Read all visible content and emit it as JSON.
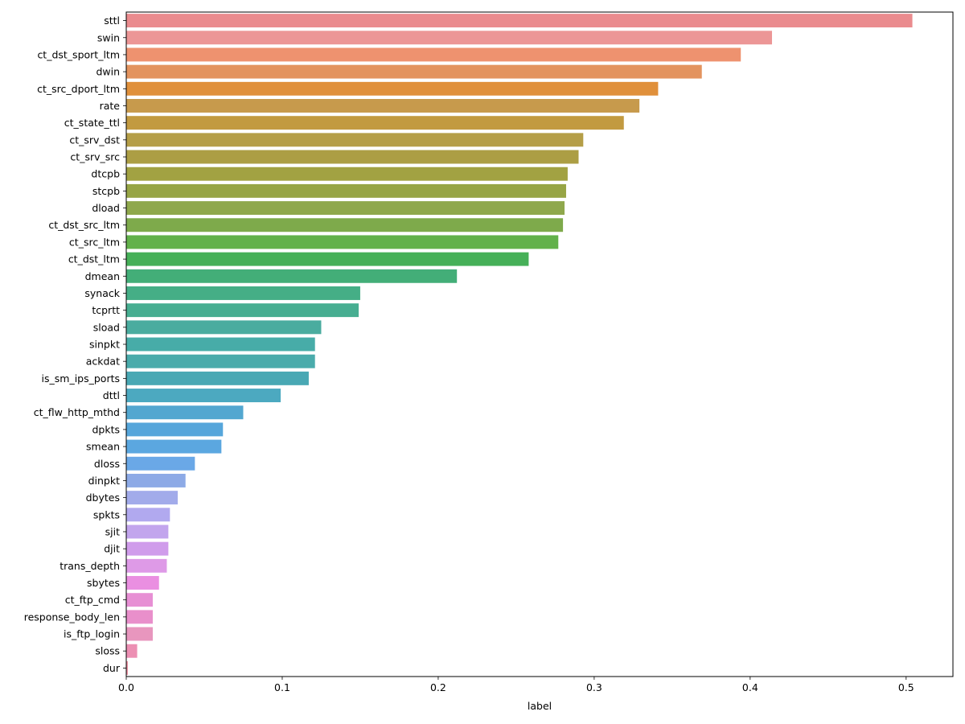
{
  "chart_data": {
    "type": "bar",
    "orientation": "horizontal",
    "title": "",
    "xlabel": "label",
    "ylabel": "",
    "xlim": [
      0,
      0.53
    ],
    "xticks": [
      0.0,
      0.1,
      0.2,
      0.3,
      0.4,
      0.5
    ],
    "xtick_labels": [
      "0.0",
      "0.1",
      "0.2",
      "0.3",
      "0.4",
      "0.5"
    ],
    "grid": false,
    "legend": "none",
    "categories": [
      "sttl",
      "swin",
      "ct_dst_sport_ltm",
      "dwin",
      "ct_src_dport_ltm",
      "rate",
      "ct_state_ttl",
      "ct_srv_dst",
      "ct_srv_src",
      "dtcpb",
      "stcpb",
      "dload",
      "ct_dst_src_ltm",
      "ct_src_ltm",
      "ct_dst_ltm",
      "dmean",
      "synack",
      "tcprtt",
      "sload",
      "sinpkt",
      "ackdat",
      "is_sm_ips_ports",
      "dttl",
      "ct_flw_http_mthd",
      "dpkts",
      "smean",
      "dloss",
      "dinpkt",
      "dbytes",
      "spkts",
      "sjit",
      "djit",
      "trans_depth",
      "sbytes",
      "ct_ftp_cmd",
      "response_body_len",
      "is_ftp_login",
      "sloss",
      "dur"
    ],
    "values": [
      0.504,
      0.414,
      0.394,
      0.369,
      0.341,
      0.329,
      0.319,
      0.293,
      0.29,
      0.283,
      0.282,
      0.281,
      0.28,
      0.277,
      0.258,
      0.212,
      0.15,
      0.149,
      0.125,
      0.121,
      0.121,
      0.117,
      0.099,
      0.075,
      0.062,
      0.061,
      0.044,
      0.038,
      0.033,
      0.028,
      0.027,
      0.027,
      0.026,
      0.021,
      0.017,
      0.017,
      0.017,
      0.007,
      0.001
    ],
    "colors": [
      "#ea8b8e",
      "#ec9696",
      "#ee926f",
      "#e3935e",
      "#e0903b",
      "#c79a4c",
      "#c29a40",
      "#b59e47",
      "#ac9e44",
      "#a2a242",
      "#97a545",
      "#8fa84c",
      "#7eaa4b",
      "#62b14a",
      "#46b058",
      "#43ae78",
      "#45ae86",
      "#47ae91",
      "#4aac9f",
      "#47aca8",
      "#4aabab",
      "#49a8b4",
      "#4ca9c0",
      "#53a7d0",
      "#56a6db",
      "#5ba7e0",
      "#6aa8e7",
      "#8daae6",
      "#a2abea",
      "#b1a9ef",
      "#c2a5ed",
      "#d09ceb",
      "#de9ae7",
      "#ea8fe1",
      "#e78fd4",
      "#e98fcb",
      "#e896be",
      "#ec8fb3",
      "#ec8d9f"
    ]
  }
}
